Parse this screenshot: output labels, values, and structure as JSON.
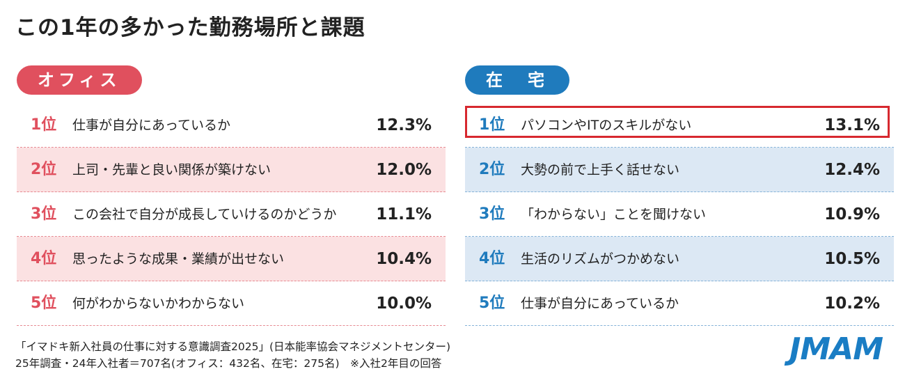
{
  "title": "この1年の多かった勤務場所と課題",
  "panels": [
    {
      "label": "オフィス",
      "rows": [
        {
          "rank": "1位",
          "item": "仕事が自分にあっているか",
          "value": "12.3%"
        },
        {
          "rank": "2位",
          "item": "上司・先輩と良い関係が築けない",
          "value": "12.0%"
        },
        {
          "rank": "3位",
          "item": "この会社で自分が成長していけるのかどうか",
          "value": "11.1%"
        },
        {
          "rank": "4位",
          "item": "思ったような成果・業績が出せない",
          "value": "10.4%"
        },
        {
          "rank": "5位",
          "item": "何がわからないかわからない",
          "value": "10.0%"
        }
      ]
    },
    {
      "label": "在　宅",
      "rows": [
        {
          "rank": "1位",
          "item": "パソコンやITのスキルがない",
          "value": "13.1%"
        },
        {
          "rank": "2位",
          "item": "大勢の前で上手く話せない",
          "value": "12.4%"
        },
        {
          "rank": "3位",
          "item": "「わからない」ことを聞けない",
          "value": "10.9%"
        },
        {
          "rank": "4位",
          "item": "生活のリズムがつかめない",
          "value": "10.5%"
        },
        {
          "rank": "5位",
          "item": "仕事が自分にあっているか",
          "value": "10.2%"
        }
      ]
    }
  ],
  "footer": [
    "「イマドキ新入社員の仕事に対する意識調査2025」(日本能率協会マネジメントセンター)",
    "25年調査・24年入社者＝707名(オフィス：432名、在宅：275名)　※入社2年目の回答"
  ],
  "logo": "JMAM"
}
